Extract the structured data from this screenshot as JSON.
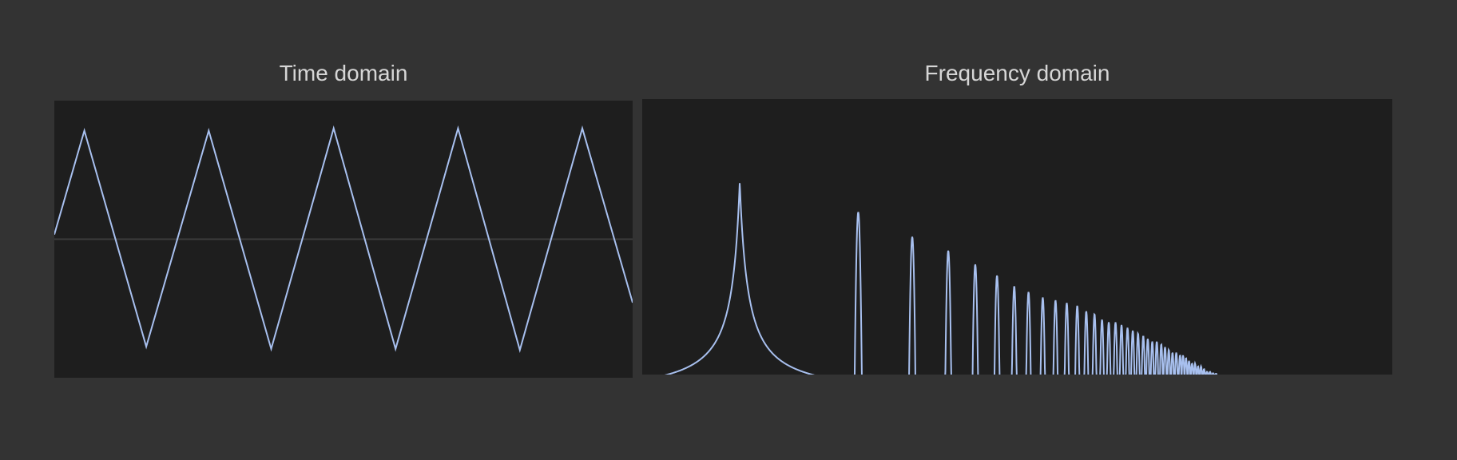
{
  "colors": {
    "background": "#333333",
    "plot_background": "#1e1e1e",
    "trace": "#a8c0ef",
    "zero_line": "#3c3c3c",
    "title_text": "#d6d6d6"
  },
  "chart_data": [
    {
      "type": "line",
      "title": "Time domain",
      "xlabel": "",
      "ylabel": "",
      "zero_line": true,
      "xlim": [
        0,
        1
      ],
      "ylim": [
        -1.2,
        1.2
      ],
      "series": [
        {
          "points": [
            [
              0.0,
              0.04
            ],
            [
              0.052,
              0.94
            ],
            [
              0.159,
              -0.93
            ],
            [
              0.267,
              0.94
            ],
            [
              0.375,
              -0.95
            ],
            [
              0.483,
              0.96
            ],
            [
              0.59,
              -0.95
            ],
            [
              0.698,
              0.96
            ],
            [
              0.805,
              -0.96
            ],
            [
              0.913,
              0.96
            ],
            [
              1.0,
              -0.55
            ]
          ]
        }
      ]
    },
    {
      "type": "line",
      "title": "Frequency domain",
      "xlabel": "",
      "ylabel": "",
      "xlim": [
        0,
        1
      ],
      "ylim": [
        0,
        1
      ],
      "fundamental": {
        "f": 0.13,
        "amplitude": 0.78,
        "width": 0.011
      },
      "harmonics": [
        {
          "f": 0.288,
          "amplitude": 0.59
        },
        {
          "f": 0.36,
          "amplitude": 0.5
        },
        {
          "f": 0.408,
          "amplitude": 0.45
        },
        {
          "f": 0.444,
          "amplitude": 0.4
        },
        {
          "f": 0.473,
          "amplitude": 0.36
        },
        {
          "f": 0.496,
          "amplitude": 0.32
        },
        {
          "f": 0.515,
          "amplitude": 0.3
        },
        {
          "f": 0.534,
          "amplitude": 0.28
        },
        {
          "f": 0.551,
          "amplitude": 0.27
        },
        {
          "f": 0.566,
          "amplitude": 0.26
        },
        {
          "f": 0.58,
          "amplitude": 0.25
        },
        {
          "f": 0.592,
          "amplitude": 0.23
        },
        {
          "f": 0.603,
          "amplitude": 0.22
        },
        {
          "f": 0.613,
          "amplitude": 0.2
        },
        {
          "f": 0.622,
          "amplitude": 0.19
        },
        {
          "f": 0.631,
          "amplitude": 0.19
        },
        {
          "f": 0.639,
          "amplitude": 0.18
        },
        {
          "f": 0.647,
          "amplitude": 0.17
        },
        {
          "f": 0.654,
          "amplitude": 0.16
        },
        {
          "f": 0.661,
          "amplitude": 0.15
        },
        {
          "f": 0.668,
          "amplitude": 0.14
        },
        {
          "f": 0.674,
          "amplitude": 0.13
        },
        {
          "f": 0.68,
          "amplitude": 0.12
        },
        {
          "f": 0.686,
          "amplitude": 0.12
        },
        {
          "f": 0.692,
          "amplitude": 0.11
        },
        {
          "f": 0.697,
          "amplitude": 0.1
        },
        {
          "f": 0.702,
          "amplitude": 0.09
        },
        {
          "f": 0.707,
          "amplitude": 0.08
        },
        {
          "f": 0.712,
          "amplitude": 0.08
        },
        {
          "f": 0.717,
          "amplitude": 0.07
        },
        {
          "f": 0.721,
          "amplitude": 0.07
        },
        {
          "f": 0.725,
          "amplitude": 0.06
        },
        {
          "f": 0.729,
          "amplitude": 0.05
        },
        {
          "f": 0.733,
          "amplitude": 0.04
        },
        {
          "f": 0.737,
          "amplitude": 0.04
        },
        {
          "f": 0.741,
          "amplitude": 0.03
        },
        {
          "f": 0.745,
          "amplitude": 0.03
        },
        {
          "f": 0.749,
          "amplitude": 0.02
        },
        {
          "f": 0.753,
          "amplitude": 0.01
        },
        {
          "f": 0.757,
          "amplitude": 0.01
        },
        {
          "f": 0.761,
          "amplitude": 0.005
        },
        {
          "f": 0.765,
          "amplitude": 0.003
        }
      ]
    }
  ]
}
